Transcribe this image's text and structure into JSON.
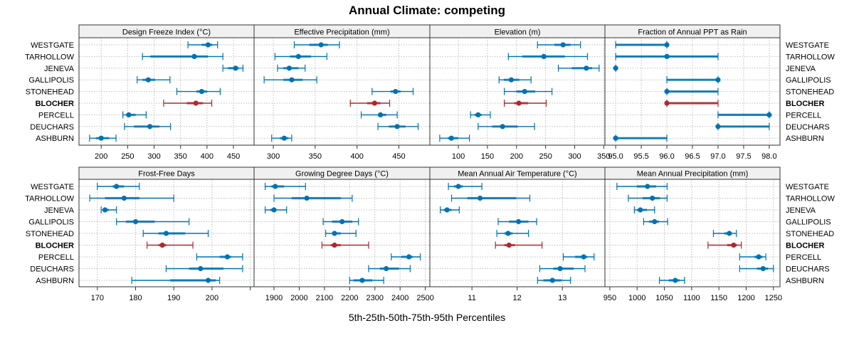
{
  "chart_data": {
    "type": "dotplot-errorbar",
    "title": "Annual Climate: competing",
    "xlabel": "5th-25th-50th-75th-95th Percentiles",
    "ylabel": "",
    "stations": [
      "WESTGATE",
      "TARHOLLOW",
      "JENEVA",
      "GALLIPOLIS",
      "STONEHEAD",
      "BLOCHER",
      "PERCELL",
      "DEUCHARS",
      "ASHBURN"
    ],
    "highlight_station": "BLOCHER",
    "colors": {
      "default": "#0072B2",
      "highlight": "#B2262C",
      "strip": "#F0F0F0",
      "grid": "#BEBEBE"
    },
    "grid": true,
    "percentile_keys": [
      "p5",
      "p25",
      "p50",
      "p75",
      "p95"
    ],
    "panels": [
      {
        "name": "Design Freeze Index (°C)",
        "xlim": [
          158,
          489
        ],
        "ticks": [
          200,
          250,
          300,
          350,
          400,
          450
        ],
        "tick_labels": [
          "200",
          "250",
          "300",
          "350",
          "400",
          "450"
        ],
        "values": [
          [
            364,
            390,
            402,
            410,
            420
          ],
          [
            278,
            293,
            376,
            402,
            430
          ],
          [
            430,
            440,
            454,
            460,
            468
          ],
          [
            268,
            278,
            289,
            302,
            330
          ],
          [
            343,
            380,
            390,
            400,
            425
          ],
          [
            318,
            362,
            379,
            392,
            409
          ],
          [
            241,
            247,
            252,
            265,
            285
          ],
          [
            244,
            262,
            292,
            310,
            331
          ],
          [
            178,
            190,
            200,
            215,
            228
          ]
        ]
      },
      {
        "name": "Effective Precipitation (mm)",
        "xlim": [
          277,
          487
        ],
        "ticks": [
          300,
          350,
          400,
          450
        ],
        "tick_labels": [
          "300",
          "350",
          "400",
          "450"
        ],
        "values": [
          [
            325,
            343,
            357,
            365,
            379
          ],
          [
            302,
            320,
            330,
            345,
            364
          ],
          [
            305,
            312,
            319,
            330,
            338
          ],
          [
            289,
            312,
            322,
            335,
            352
          ],
          [
            418,
            440,
            446,
            452,
            467
          ],
          [
            392,
            412,
            421,
            428,
            439
          ],
          [
            405,
            425,
            428,
            435,
            448
          ],
          [
            425,
            438,
            448,
            458,
            473
          ],
          [
            298,
            308,
            313,
            318,
            322
          ]
        ]
      },
      {
        "name": "Elevation (m)",
        "xlim": [
          51,
          352
        ],
        "ticks": [
          100,
          150,
          200,
          250,
          300,
          350
        ],
        "tick_labels": [
          "100",
          "150",
          "200",
          "250",
          "300",
          "350"
        ],
        "values": [
          [
            236,
            265,
            280,
            293,
            310
          ],
          [
            186,
            210,
            247,
            283,
            322
          ],
          [
            272,
            295,
            320,
            330,
            342
          ],
          [
            170,
            178,
            191,
            205,
            225
          ],
          [
            179,
            200,
            214,
            232,
            261
          ],
          [
            179,
            196,
            204,
            220,
            251
          ],
          [
            121,
            128,
            134,
            140,
            155
          ],
          [
            134,
            158,
            176,
            202,
            231
          ],
          [
            68,
            82,
            88,
            100,
            119
          ]
        ]
      },
      {
        "name": "Fraction of Annual PPT as Rain",
        "xlim": [
          94.79,
          98.21
        ],
        "ticks": [
          95.0,
          95.5,
          96.0,
          96.5,
          97.0,
          97.5,
          98.0
        ],
        "tick_labels": [
          "95.0",
          "95.5",
          "96.0",
          "96.5",
          "97.0",
          "97.5",
          "98.0"
        ],
        "values": [
          [
            95,
            95,
            96,
            96,
            96
          ],
          [
            95,
            95,
            96,
            97,
            97
          ],
          [
            95,
            95,
            95,
            95,
            95
          ],
          [
            96,
            96,
            97,
            97,
            97
          ],
          [
            96,
            96,
            96,
            97,
            97
          ],
          [
            96,
            96,
            96,
            97,
            97
          ],
          [
            97,
            97,
            98,
            98,
            98
          ],
          [
            97,
            97,
            97,
            98,
            98
          ],
          [
            95,
            95,
            95,
            96,
            96
          ]
        ]
      },
      {
        "name": "Frost-Free Days",
        "xlim": [
          165.2,
          211
        ],
        "ticks": [
          170,
          180,
          190,
          200,
          210
        ],
        "tick_labels": [
          "170",
          "180",
          "190",
          "200",
          ""
        ],
        "values": [
          [
            170,
            174,
            175,
            177,
            181
          ],
          [
            168,
            172,
            177,
            181,
            190
          ],
          [
            171,
            171.5,
            172,
            173,
            175
          ],
          [
            175,
            177.5,
            180,
            185,
            194
          ],
          [
            182,
            186,
            188,
            193,
            199
          ],
          [
            183,
            186,
            187,
            188,
            195
          ],
          [
            196,
            202,
            204,
            205,
            208
          ],
          [
            188,
            194,
            197,
            203,
            208
          ],
          [
            179,
            189,
            199,
            201,
            202
          ]
        ]
      },
      {
        "name": "Growing Degree Days (°C)",
        "xlim": [
          1821,
          2518
        ],
        "ticks": [
          1900,
          2000,
          2100,
          2200,
          2300,
          2400,
          2500
        ],
        "tick_labels": [
          "1900",
          "2000",
          "2100",
          "2200",
          "2300",
          "2400",
          "2500"
        ],
        "values": [
          [
            1865,
            1890,
            1905,
            1940,
            2025
          ],
          [
            1900,
            1970,
            2030,
            2165,
            2210
          ],
          [
            1865,
            1885,
            1900,
            1910,
            1950
          ],
          [
            2095,
            2130,
            2170,
            2210,
            2235
          ],
          [
            2105,
            2130,
            2140,
            2165,
            2225
          ],
          [
            2090,
            2125,
            2140,
            2165,
            2275
          ],
          [
            2365,
            2405,
            2435,
            2450,
            2480
          ],
          [
            2275,
            2320,
            2345,
            2395,
            2440
          ],
          [
            2200,
            2215,
            2250,
            2290,
            2335
          ]
        ]
      },
      {
        "name": "Mean Annual Air Temperature (°C)",
        "xlim": [
          10.07,
          13.94
        ],
        "ticks": [
          11,
          12,
          13
        ],
        "tick_labels": [
          "11",
          "12",
          "13"
        ],
        "values": [
          [
            10.48,
            10.6,
            10.7,
            10.8,
            11.22
          ],
          [
            10.55,
            10.9,
            11.18,
            11.98,
            12.28
          ],
          [
            10.3,
            10.38,
            10.45,
            10.55,
            10.72
          ],
          [
            11.58,
            11.82,
            12.03,
            12.25,
            12.43
          ],
          [
            11.55,
            11.72,
            11.8,
            11.9,
            12.25
          ],
          [
            11.52,
            11.72,
            11.82,
            11.95,
            12.55
          ],
          [
            13.02,
            13.28,
            13.47,
            13.55,
            13.7
          ],
          [
            12.5,
            12.8,
            12.95,
            13.25,
            13.5
          ],
          [
            12.45,
            12.58,
            12.78,
            12.98,
            13.18
          ]
        ]
      },
      {
        "name": "Mean Annual Precipitation (mm)",
        "xlim": [
          941,
          1262
        ],
        "ticks": [
          950,
          1000,
          1050,
          1100,
          1150,
          1200,
          1250
        ],
        "tick_labels": [
          "950",
          "1000",
          "1050",
          "1100",
          "1150",
          "1200",
          "1250"
        ],
        "values": [
          [
            963,
            1000,
            1019,
            1035,
            1055
          ],
          [
            984,
            1010,
            1028,
            1042,
            1055
          ],
          [
            995,
            1000,
            1006,
            1018,
            1032
          ],
          [
            1012,
            1022,
            1032,
            1040,
            1056
          ],
          [
            1140,
            1160,
            1169,
            1174,
            1182
          ],
          [
            1130,
            1165,
            1177,
            1183,
            1191
          ],
          [
            1188,
            1215,
            1223,
            1230,
            1236
          ],
          [
            1188,
            1220,
            1231,
            1240,
            1250
          ],
          [
            1041,
            1058,
            1070,
            1078,
            1087
          ]
        ]
      }
    ]
  }
}
